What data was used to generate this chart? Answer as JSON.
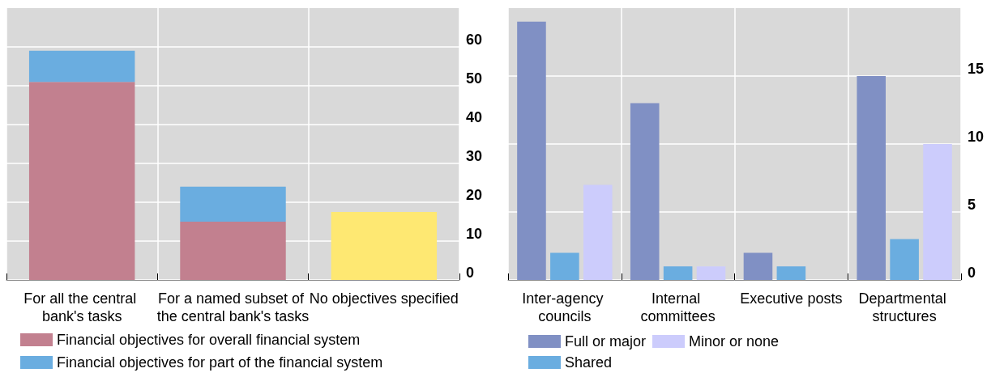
{
  "chart_data": [
    {
      "type": "bar",
      "categories": [
        "For all the central bank's tasks",
        "For a named subset of the central bank's tasks",
        "No objectives specified"
      ],
      "stacked": true,
      "series": [
        {
          "name": "Financial objectives for overall financial system",
          "color": "#c2808f",
          "values": [
            51,
            15,
            null
          ]
        },
        {
          "name": "Financial objectives for part of the financial system",
          "color": "#6aade0",
          "values": [
            8,
            9,
            null
          ]
        },
        {
          "color": "#fee872",
          "values": [
            null,
            null,
            17.5
          ]
        }
      ],
      "ylim": [
        0,
        70
      ],
      "yticks": [
        0,
        10,
        20,
        30,
        40,
        50,
        60
      ],
      "grid": true,
      "legend": "bottom"
    },
    {
      "type": "bar",
      "categories": [
        "Inter-agency councils",
        "Internal committees",
        "Executive posts",
        "Departmental structures"
      ],
      "series": [
        {
          "name": "Full or major",
          "color": "#8090c4",
          "values": [
            19,
            13,
            2,
            15
          ]
        },
        {
          "name": "Shared",
          "color": "#6aade0",
          "values": [
            2,
            1,
            1,
            3
          ]
        },
        {
          "name": "Minor or none",
          "color": "#ccccfc",
          "values": [
            7,
            1,
            0,
            10
          ]
        }
      ],
      "ylim": [
        0,
        20
      ],
      "yticks": [
        0,
        5,
        10,
        15
      ],
      "grid": true,
      "legend": "bottom"
    }
  ]
}
